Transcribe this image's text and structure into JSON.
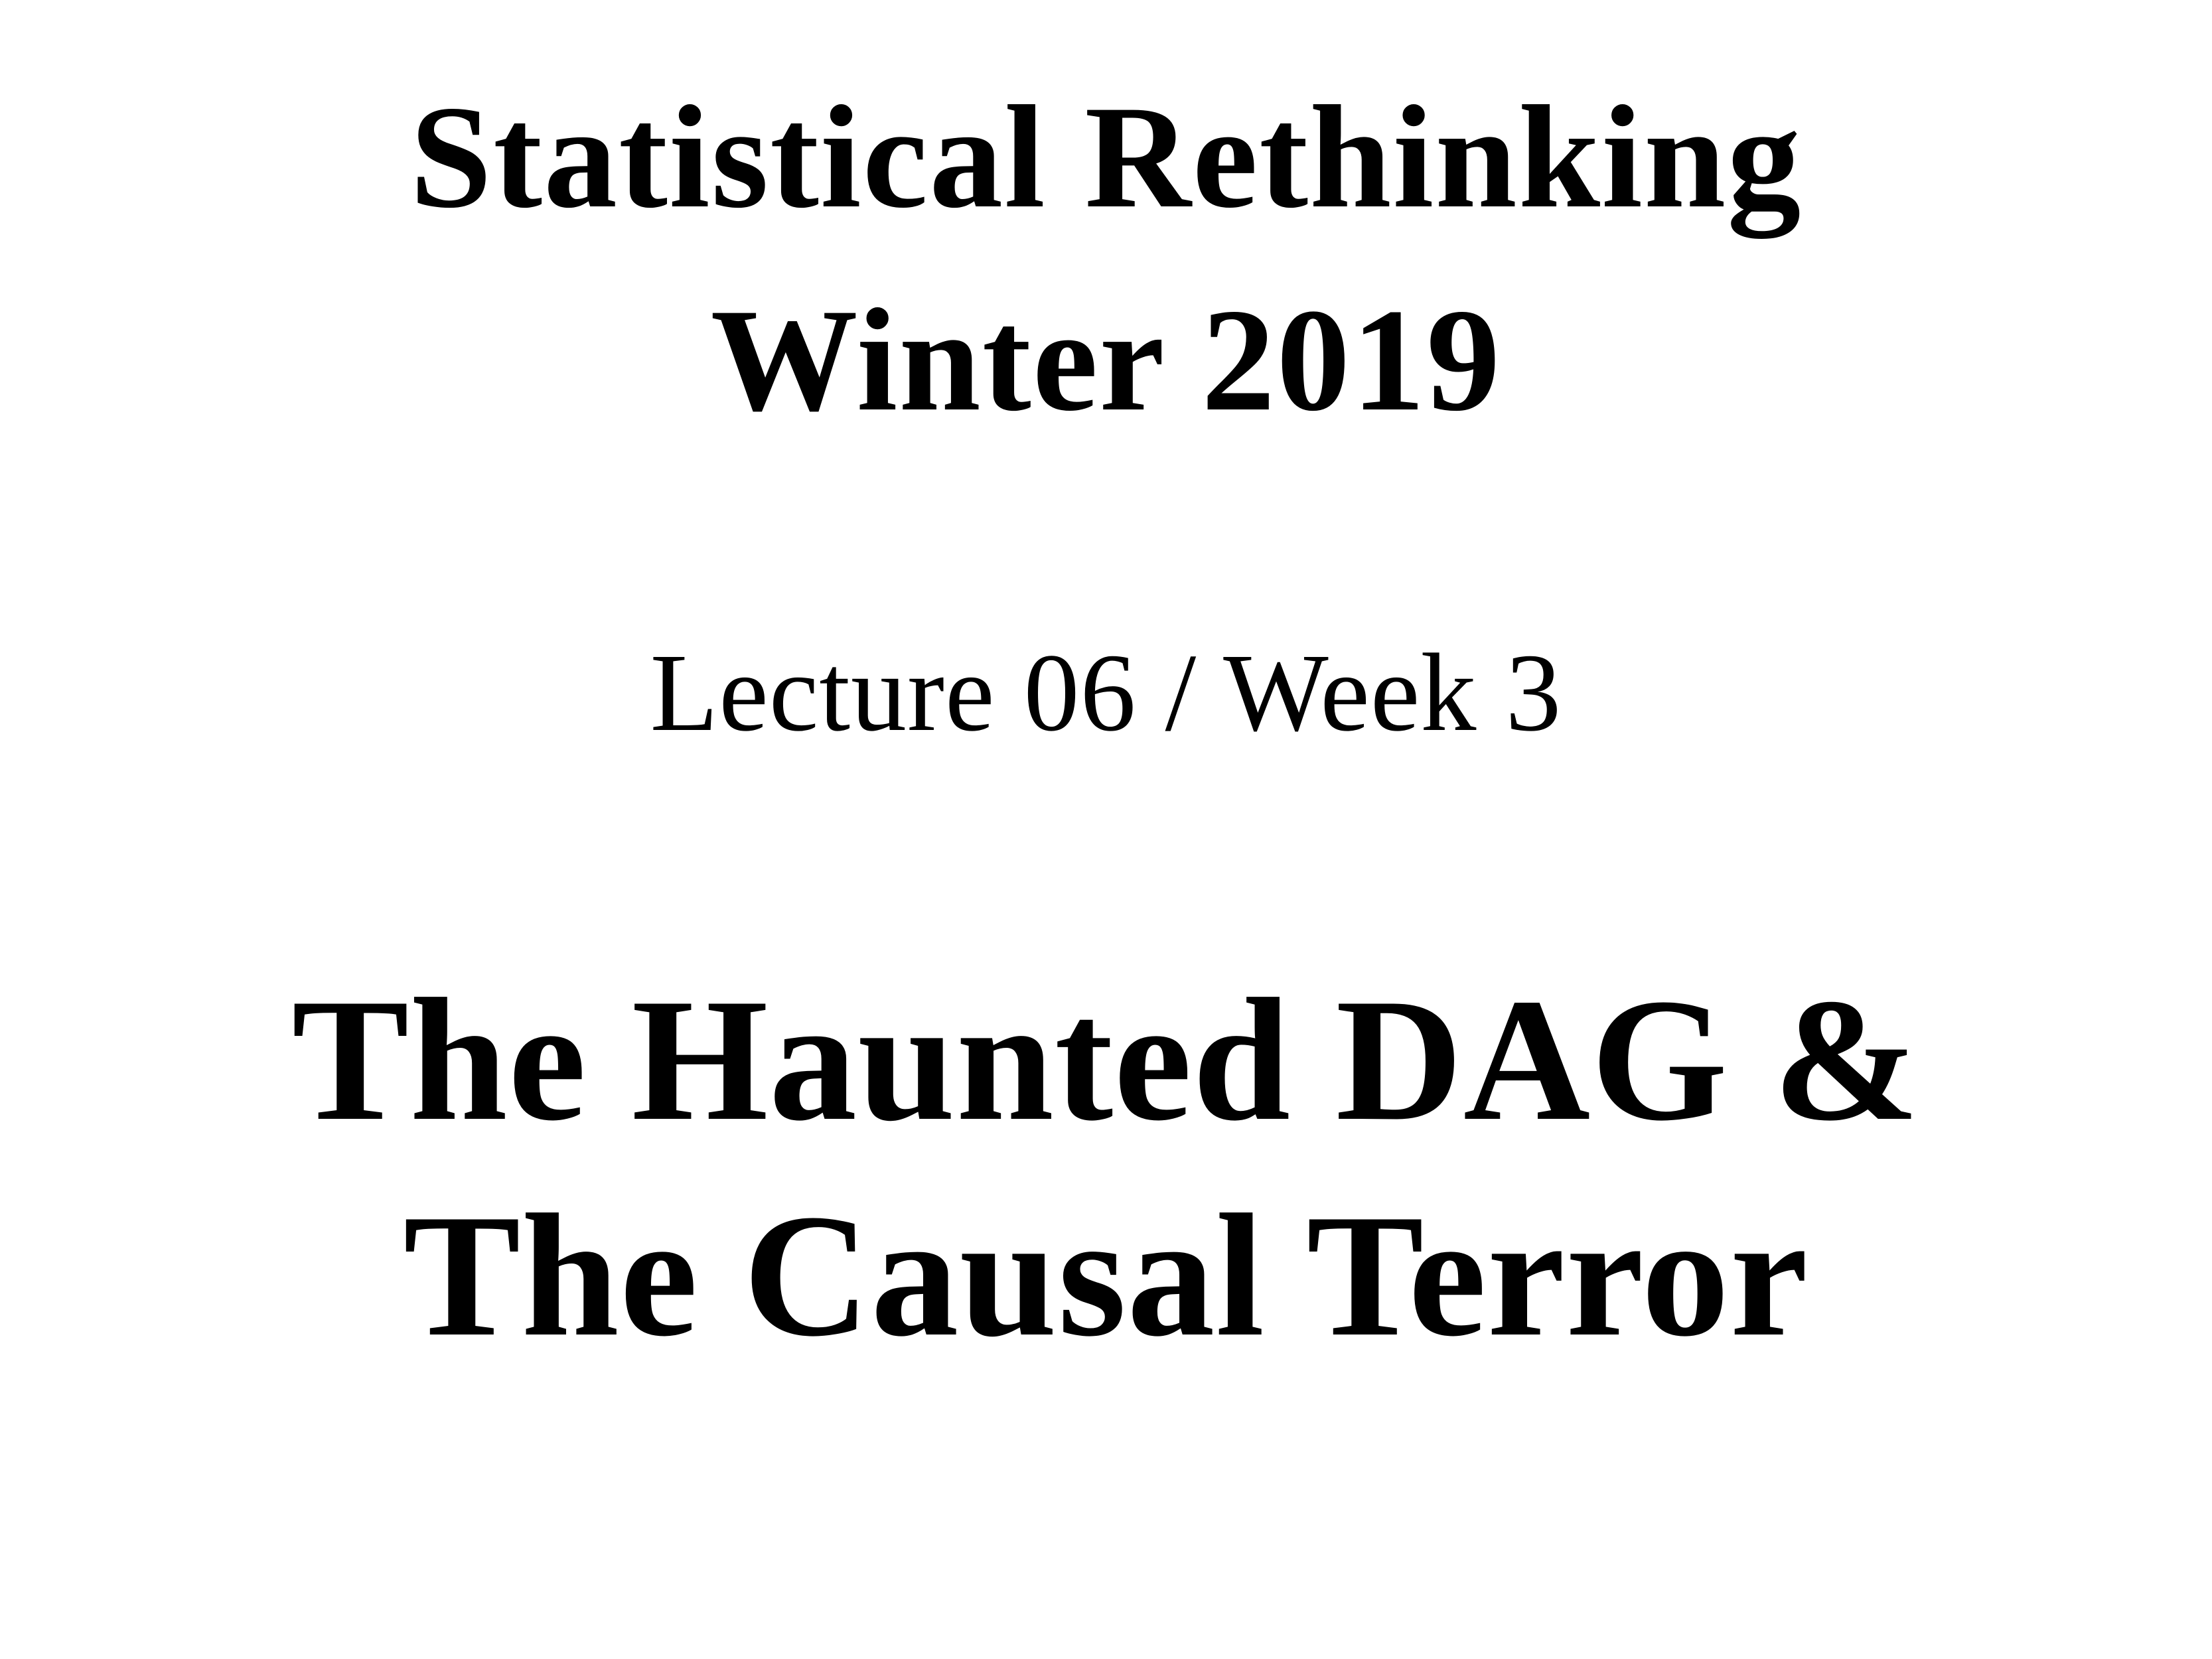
{
  "course": {
    "title_line_1": "Statistical Rethinking",
    "title_line_2": "Winter 2019"
  },
  "lecture": {
    "subtitle": "Lecture 06 / Week 3",
    "title_line_1": "The Haunted DAG &",
    "title_line_2": "The Causal Terror"
  }
}
